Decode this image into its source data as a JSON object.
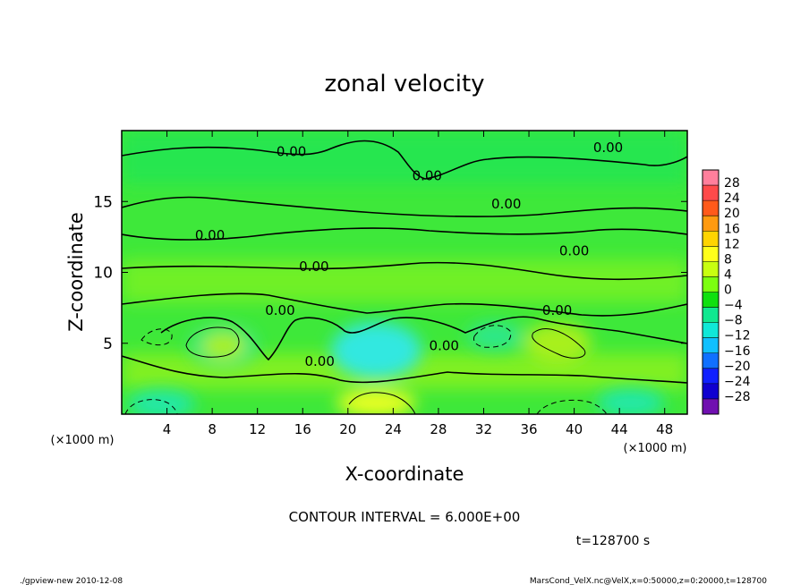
{
  "chart_data": {
    "type": "heatmap",
    "title": "zonal velocity",
    "xlabel": "X-coordinate",
    "ylabel": "Z-coordinate",
    "x_unit_label": "(×1000 m)",
    "z_unit_label": "(×1000 m)",
    "xlim": [
      0,
      50
    ],
    "ylim": [
      0,
      20
    ],
    "x_ticks": [
      4,
      8,
      12,
      16,
      20,
      24,
      28,
      32,
      36,
      40,
      44,
      48
    ],
    "y_ticks": [
      5,
      10,
      15
    ],
    "contour_interval_text": "CONTOUR INTERVAL = 6.000E+00",
    "time_text": "t=128700 s",
    "colorbar": {
      "labels": [
        "28",
        "24",
        "20",
        "16",
        "12",
        "8",
        "4",
        "0",
        "−4",
        "−8",
        "−12",
        "−16",
        "−20",
        "−24",
        "−28"
      ],
      "colors": [
        "#ff7f9c",
        "#ff4a4a",
        "#ff5a1a",
        "#ff9a10",
        "#ffd400",
        "#ffff1a",
        "#c8ff10",
        "#7cff10",
        "#10e010",
        "#10e890",
        "#10e8d8",
        "#10c0ff",
        "#1070ff",
        "#1020ff",
        "#1000d0",
        "#7010b0"
      ]
    },
    "regions": [
      {
        "sign": "negative",
        "x": 3.5,
        "z": 0.7,
        "rx": 3,
        "rz": 1,
        "value": -8
      },
      {
        "sign": "negative",
        "x": 9,
        "z": 4.8,
        "rx": 3,
        "rz": 1.5,
        "value": -6
      },
      {
        "sign": "positive",
        "x": 9,
        "z": 4.8,
        "rx": 2,
        "rz": 1,
        "value": 6
      },
      {
        "sign": "negative",
        "x": 22.5,
        "z": 4.5,
        "rx": 4,
        "rz": 2,
        "value": -12
      },
      {
        "sign": "positive",
        "x": 22.5,
        "z": 0.8,
        "rx": 3.5,
        "rz": 1,
        "value": 8
      },
      {
        "sign": "negative",
        "x": 33,
        "z": 5.5,
        "rx": 2.5,
        "rz": 1,
        "value": -6
      },
      {
        "sign": "positive",
        "x": 38.5,
        "z": 5,
        "rx": 3,
        "rz": 1.5,
        "value": 6
      },
      {
        "sign": "negative",
        "x": 45,
        "z": 0.8,
        "rx": 3,
        "rz": 1,
        "value": -8
      }
    ],
    "contour_labels": [
      {
        "x": 15,
        "z": 18.2,
        "text": "0.00"
      },
      {
        "x": 27,
        "z": 16.5,
        "text": "0.00"
      },
      {
        "x": 43,
        "z": 18.5,
        "text": "0.00"
      },
      {
        "x": 34,
        "z": 14.5,
        "text": "0.00"
      },
      {
        "x": 7.8,
        "z": 12.3,
        "text": "0.00"
      },
      {
        "x": 40,
        "z": 11.2,
        "text": "0.00"
      },
      {
        "x": 17,
        "z": 10.1,
        "text": "0.00"
      },
      {
        "x": 14,
        "z": 7.0,
        "text": "0.00"
      },
      {
        "x": 38.5,
        "z": 7.0,
        "text": "0.00"
      },
      {
        "x": 28.5,
        "z": 4.5,
        "text": "0.00"
      },
      {
        "x": 17.5,
        "z": 3.4,
        "text": "0.00"
      }
    ]
  },
  "footer": {
    "left": "./gpview-new   2010-12-08",
    "right": "MarsCond_VelX.nc@VelX,x=0:50000,z=0:20000,t=128700"
  }
}
